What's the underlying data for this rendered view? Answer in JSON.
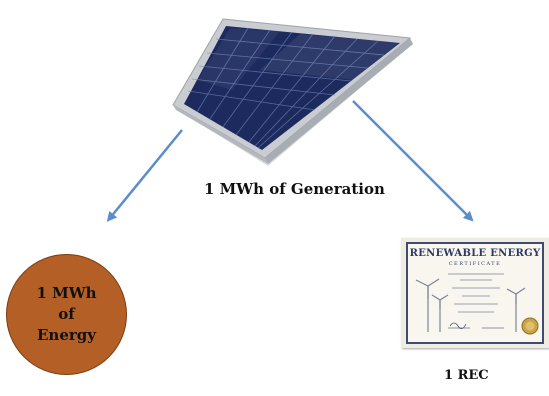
{
  "diagram": {
    "generation_label": "1 MWh of Generation",
    "energy_label": "1 MWh\nof\nEnergy",
    "rec_label": "1 REC",
    "certificate": {
      "title": "RENEWABLE ENERGY",
      "subtitle": "CERTIFICATE"
    }
  },
  "colors": {
    "arrow": "#5b8ccc",
    "energy_circle": "#b35f26",
    "panel_cells": "#1c2a5e",
    "panel_frame": "#c9ccd0",
    "certificate_border": "#3f4b73"
  },
  "icons": {
    "solar_panel": "solar-panel-icon",
    "certificate": "certificate-icon",
    "wind_turbine": "wind-turbine-icon",
    "seal": "seal-icon"
  }
}
